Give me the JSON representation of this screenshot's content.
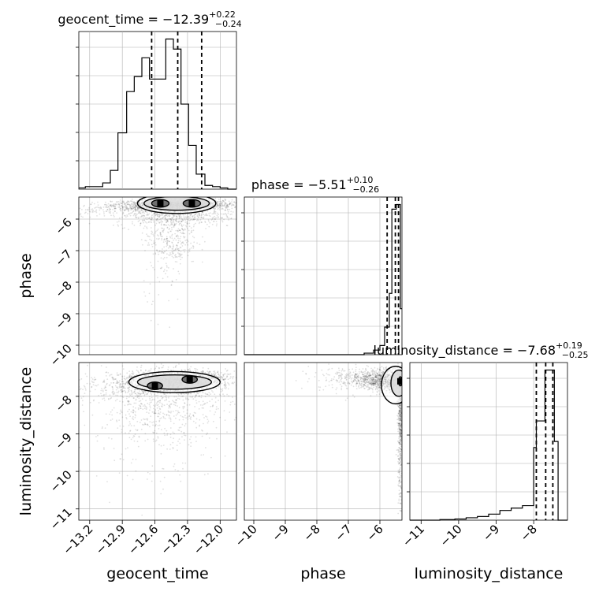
{
  "chart_data": {
    "type": "corner",
    "grid": true,
    "parameters": [
      {
        "name": "geocent_time",
        "xlabel": "geocent_time",
        "title": {
          "base": "geocent_time = −12.39",
          "sup": "+0.22",
          "sub": "−0.24"
        },
        "xlim": [
          -13.3,
          -11.85
        ],
        "ticks": [
          -13.2,
          -12.9,
          -12.6,
          -12.3,
          -12.0
        ],
        "tick_labels": [
          "−13.2",
          "−12.9",
          "−12.6",
          "−12.3",
          "−12.0"
        ],
        "quantiles": [
          -12.63,
          -12.39,
          -12.17
        ],
        "hist_edges": [
          -13.3,
          -13.24,
          -13.16,
          -13.08,
          -13.01,
          -12.94,
          -12.86,
          -12.79,
          -12.72,
          -12.65,
          -12.58,
          -12.5,
          -12.43,
          -12.36,
          -12.29,
          -12.22,
          -12.14,
          -12.07,
          -12.0,
          -11.93,
          -11.85
        ],
        "hist_values": [
          1,
          2,
          2,
          5,
          15,
          45,
          78,
          90,
          105,
          88,
          88,
          120,
          112,
          68,
          35,
          12,
          3,
          2,
          1,
          0
        ]
      },
      {
        "name": "phase",
        "xlabel": "phase",
        "title": {
          "base": "phase = −5.51",
          "sup": "+0.10",
          "sub": "−0.26"
        },
        "xlim": [
          -10.3,
          -5.3
        ],
        "ticks": [
          -10,
          -9,
          -8,
          -7,
          -6
        ],
        "tick_labels": [
          "−10",
          "−9",
          "−8",
          "−7",
          "−6"
        ],
        "quantiles": [
          -5.77,
          -5.51,
          -5.41
        ],
        "hist_edges": [
          -10.3,
          -6.5,
          -6.2,
          -6.0,
          -5.85,
          -5.7,
          -5.62,
          -5.55,
          -5.48,
          -5.41,
          -5.35,
          -5.3
        ],
        "hist_values": [
          0,
          1,
          3,
          6,
          18,
          40,
          95,
          95,
          98,
          98,
          30
        ]
      },
      {
        "name": "luminosity_distance",
        "xlabel": "luminosity_distance",
        "title": {
          "base": "luminosity_distance = −7.68",
          "sup": "+0.19",
          "sub": "−0.25"
        },
        "xlim": [
          -11.3,
          -7.1
        ],
        "ticks": [
          -11,
          -10,
          -9,
          -8
        ],
        "tick_labels": [
          "−11",
          "−10",
          "−9",
          "−8"
        ],
        "quantiles": [
          -7.93,
          -7.68,
          -7.49
        ],
        "hist_edges": [
          -11.3,
          -10.5,
          -10.1,
          -9.8,
          -9.5,
          -9.2,
          -8.9,
          -8.6,
          -8.3,
          -8.0,
          -7.93,
          -7.7,
          -7.45,
          -7.35,
          -7.1
        ],
        "hist_values": [
          0,
          0.5,
          1,
          2,
          3,
          5,
          8,
          10,
          12,
          60,
          82,
          124,
          65,
          0
        ]
      }
    ],
    "pair_ticks": {
      "phase": {
        "ticks": [
          -6,
          -7,
          -8,
          -9,
          -10
        ],
        "tick_labels": [
          "−6",
          "−7",
          "−8",
          "−9",
          "−10"
        ],
        "ylim": [
          -10.3,
          -5.3
        ]
      },
      "luminosity_distance": {
        "ticks": [
          -8,
          -9,
          -10,
          -11
        ],
        "tick_labels": [
          "−8",
          "−9",
          "−10",
          "−11"
        ],
        "ylim": [
          -11.3,
          -7.1
        ]
      }
    },
    "pairs": {
      "phase_vs_geocent_time": {
        "x": "geocent_time",
        "y": "phase",
        "clusters": [
          {
            "cx": -12.55,
            "cy": -5.55,
            "sx": 0.22,
            "sy": 0.08,
            "n": 900
          },
          {
            "cx": -12.25,
            "cy": -5.55,
            "sx": 0.18,
            "sy": 0.08,
            "n": 800
          },
          {
            "cx": -12.42,
            "cy": -5.9,
            "sx": 0.28,
            "sy": 0.18,
            "n": 500
          },
          {
            "cx": -12.45,
            "cy": -6.6,
            "sx": 0.12,
            "sy": 0.45,
            "n": 320
          },
          {
            "cx": -12.8,
            "cy": -5.7,
            "sx": 0.35,
            "sy": 0.1,
            "n": 250
          },
          {
            "cx": -12.5,
            "cy": -7.8,
            "sx": 0.1,
            "sy": 0.6,
            "n": 40
          }
        ],
        "contours": [
          {
            "cx": -12.4,
            "cy": -5.5,
            "rx": 0.36,
            "ry": 0.32
          },
          {
            "cx": -12.4,
            "cy": -5.5,
            "rx": 0.3,
            "ry": 0.22
          },
          {
            "cx": -12.55,
            "cy": -5.5,
            "rx": 0.08,
            "ry": 0.12
          },
          {
            "cx": -12.26,
            "cy": -5.5,
            "rx": 0.08,
            "ry": 0.12
          }
        ]
      },
      "luminosity_distance_vs_geocent_time": {
        "x": "geocent_time",
        "y": "luminosity_distance",
        "clusters": [
          {
            "cx": -12.45,
            "cy": -7.6,
            "sx": 0.22,
            "sy": 0.14,
            "n": 1300
          },
          {
            "cx": -12.7,
            "cy": -7.75,
            "sx": 0.35,
            "sy": 0.2,
            "n": 500
          },
          {
            "cx": -12.5,
            "cy": -8.3,
            "sx": 0.3,
            "sy": 0.45,
            "n": 500
          },
          {
            "cx": -12.6,
            "cy": -9.4,
            "sx": 0.35,
            "sy": 0.6,
            "n": 120
          },
          {
            "cx": -12.1,
            "cy": -7.5,
            "sx": 0.12,
            "sy": 0.1,
            "n": 200
          }
        ],
        "contours": [
          {
            "cx": -12.42,
            "cy": -7.62,
            "rx": 0.42,
            "ry": 0.28
          },
          {
            "cx": -12.42,
            "cy": -7.62,
            "rx": 0.34,
            "ry": 0.19
          },
          {
            "cx": -12.28,
            "cy": -7.55,
            "rx": 0.07,
            "ry": 0.1
          },
          {
            "cx": -12.6,
            "cy": -7.72,
            "rx": 0.07,
            "ry": 0.1
          }
        ]
      },
      "luminosity_distance_vs_phase": {
        "x": "phase",
        "y": "luminosity_distance",
        "clusters": [
          {
            "cx": -5.7,
            "cy": -7.6,
            "sx": 0.45,
            "sy": 0.14,
            "n": 900
          },
          {
            "cx": -6.3,
            "cy": -7.5,
            "sx": 0.6,
            "sy": 0.12,
            "n": 400
          },
          {
            "cx": -5.35,
            "cy": -8.5,
            "sx": 0.04,
            "sy": 0.7,
            "n": 500
          },
          {
            "cx": -5.36,
            "cy": -10.3,
            "sx": 0.03,
            "sy": 0.5,
            "n": 60
          },
          {
            "cx": -7.2,
            "cy": -7.6,
            "sx": 0.7,
            "sy": 0.2,
            "n": 80
          }
        ],
        "contours": [
          {
            "cx": -5.5,
            "cy": -7.7,
            "rx": 0.45,
            "ry": 0.5
          },
          {
            "cx": -5.4,
            "cy": -7.65,
            "rx": 0.25,
            "ry": 0.35
          },
          {
            "cx": -5.35,
            "cy": -7.6,
            "rx": 0.06,
            "ry": 0.12
          }
        ]
      }
    }
  }
}
